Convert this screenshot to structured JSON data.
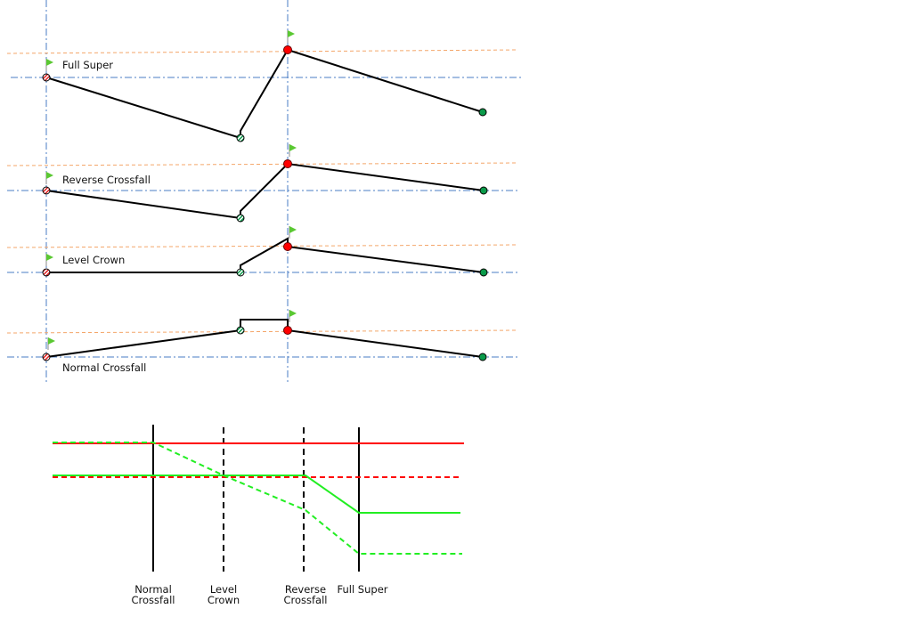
{
  "sections": [
    {
      "label": "Full Super"
    },
    {
      "label": "Reverse Crossfall"
    },
    {
      "label": "Level Crown"
    },
    {
      "label": "Normal Crossfall"
    }
  ],
  "stages": [
    {
      "line1": "Normal",
      "line2": "Crossfall"
    },
    {
      "line1": "Level",
      "line2": "Crown"
    },
    {
      "line1": "Reverse",
      "line2": "Crossfall"
    },
    {
      "line1": "Full Super",
      "line2": ""
    }
  ],
  "colors": {
    "left_edge": "#ff0000",
    "right_edge": "#00ee00",
    "end_point": "#0a9a4a",
    "pivot_point": "#ff0000",
    "flag": "#5ac832",
    "reference": "#4a7cc4",
    "target": "#f4a66a"
  }
}
